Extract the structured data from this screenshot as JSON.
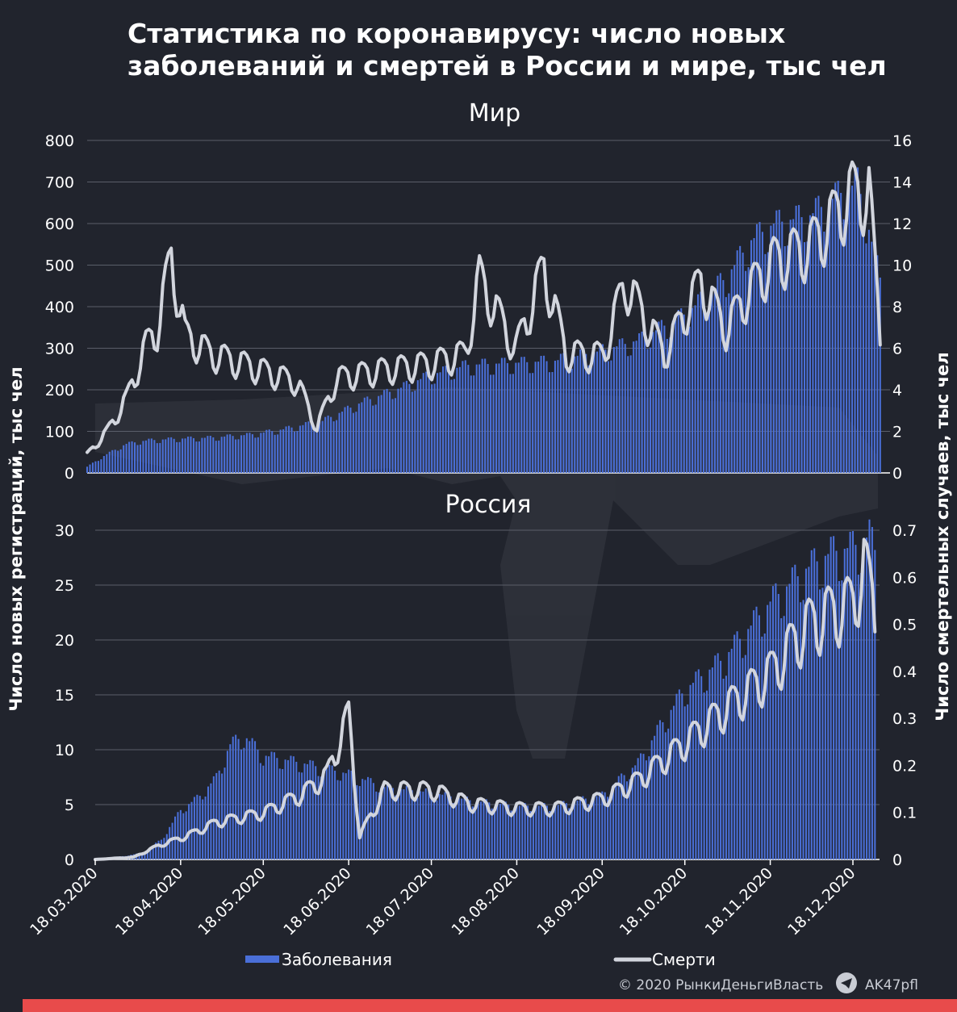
{
  "title": "Статистика по коронавирусу: число новых заболеваний и смертей в России и мире, тыс чел",
  "left_axis_label": "Число новых регистраций, тыс чел",
  "right_axis_label": "Число смертельных случаев, тыс чел",
  "legend": {
    "cases": "Заболевания",
    "deaths": "Смерти"
  },
  "credit": "© 2020  РынкиДеньгиВласть",
  "handle": "AK47pfl",
  "icons": {
    "watermark": "ak47-watermark-icon",
    "telegram": "telegram-icon"
  },
  "colors": {
    "background": "#21242d",
    "cases": "#4a6fd8",
    "deaths": "#d2d5dd",
    "grid": "#5a5e69",
    "bottom_bar": "#e84b4b"
  },
  "chart_data": [
    {
      "type": "bar+line",
      "title": "Мир",
      "x_range": [
        "2020-03-18",
        "2020-12-26"
      ],
      "x_ticks": [
        "18.03.2020",
        "18.04.2020",
        "18.05.2020",
        "18.06.2020",
        "18.07.2020",
        "18.08.2020",
        "18.09.2020",
        "18.10.2020",
        "18.11.2020",
        "18.12.2020"
      ],
      "ylim_left": [
        0,
        800
      ],
      "yticks_left": [
        0,
        100,
        200,
        300,
        400,
        500,
        600,
        700,
        800
      ],
      "ylim_right": [
        0,
        16
      ],
      "yticks_right": [
        0,
        2,
        4,
        6,
        8,
        10,
        12,
        14,
        16
      ],
      "grid": true,
      "series": [
        {
          "name": "Заболевания",
          "kind": "bar",
          "axis": "left",
          "points": [
            [
              "2020-03-18",
              15
            ],
            [
              "2020-03-25",
              45
            ],
            [
              "2020-04-01",
              70
            ],
            [
              "2020-04-08",
              78
            ],
            [
              "2020-04-18",
              82
            ],
            [
              "2020-05-01",
              85
            ],
            [
              "2020-05-15",
              92
            ],
            [
              "2020-05-27",
              105
            ],
            [
              "2020-06-10",
              125
            ],
            [
              "2020-06-24",
              170
            ],
            [
              "2020-07-08",
              205
            ],
            [
              "2020-07-18",
              235
            ],
            [
              "2020-08-01",
              260
            ],
            [
              "2020-08-18",
              265
            ],
            [
              "2020-09-01",
              270
            ],
            [
              "2020-09-18",
              295
            ],
            [
              "2020-10-01",
              320
            ],
            [
              "2020-10-18",
              385
            ],
            [
              "2020-11-01",
              470
            ],
            [
              "2020-11-10",
              560
            ],
            [
              "2020-11-18",
              600
            ],
            [
              "2020-12-01",
              620
            ],
            [
              "2020-12-10",
              665
            ],
            [
              "2020-12-18",
              700
            ],
            [
              "2020-12-26",
              470
            ]
          ]
        },
        {
          "name": "Смерти",
          "kind": "line",
          "axis": "right",
          "points": [
            [
              "2020-03-18",
              0.9
            ],
            [
              "2020-03-25",
              2.0
            ],
            [
              "2020-04-01",
              3.6
            ],
            [
              "2020-04-08",
              6.2
            ],
            [
              "2020-04-12",
              7.0
            ],
            [
              "2020-04-17",
              10.5
            ],
            [
              "2020-04-22",
              6.7
            ],
            [
              "2020-05-01",
              5.8
            ],
            [
              "2020-05-15",
              5.2
            ],
            [
              "2020-06-01",
              4.4
            ],
            [
              "2020-06-08",
              2.2
            ],
            [
              "2020-06-15",
              4.6
            ],
            [
              "2020-07-01",
              5.0
            ],
            [
              "2020-07-18",
              5.3
            ],
            [
              "2020-07-31",
              5.8
            ],
            [
              "2020-08-05",
              9.5
            ],
            [
              "2020-08-18",
              6.0
            ],
            [
              "2020-08-28",
              10.0
            ],
            [
              "2020-09-05",
              5.8
            ],
            [
              "2020-09-18",
              5.7
            ],
            [
              "2020-09-26",
              9.3
            ],
            [
              "2020-10-10",
              5.8
            ],
            [
              "2020-10-23",
              9.3
            ],
            [
              "2020-11-01",
              7.0
            ],
            [
              "2020-11-10",
              9.0
            ],
            [
              "2020-11-18",
              10.3
            ],
            [
              "2020-12-01",
              11.0
            ],
            [
              "2020-12-10",
              12.5
            ],
            [
              "2020-12-16",
              13.6
            ],
            [
              "2020-12-22",
              13.6
            ],
            [
              "2020-12-26",
              7.0
            ]
          ]
        }
      ]
    },
    {
      "type": "bar+line",
      "title": "Россия",
      "x_range": [
        "2020-03-18",
        "2020-12-26"
      ],
      "x_ticks": [
        "18.03.2020",
        "18.04.2020",
        "18.05.2020",
        "18.06.2020",
        "18.07.2020",
        "18.08.2020",
        "18.09.2020",
        "18.10.2020",
        "18.11.2020",
        "18.12.2020"
      ],
      "ylim_left": [
        0,
        30
      ],
      "yticks_left": [
        0,
        5,
        10,
        15,
        20,
        25,
        30
      ],
      "ylim_right": [
        0,
        0.7
      ],
      "yticks_right": [
        0,
        0.1,
        0.2,
        0.3,
        0.4,
        0.5,
        0.6,
        0.7
      ],
      "grid": true,
      "series": [
        {
          "name": "Заболевания",
          "kind": "bar",
          "axis": "left",
          "points": [
            [
              "2020-03-18",
              0.05
            ],
            [
              "2020-03-28",
              0.3
            ],
            [
              "2020-04-04",
              0.6
            ],
            [
              "2020-04-11",
              1.8
            ],
            [
              "2020-04-18",
              4.5
            ],
            [
              "2020-04-25",
              5.8
            ],
            [
              "2020-05-01",
              7.5
            ],
            [
              "2020-05-06",
              10.5
            ],
            [
              "2020-05-11",
              11.3
            ],
            [
              "2020-05-18",
              9.5
            ],
            [
              "2020-06-01",
              8.8
            ],
            [
              "2020-06-18",
              7.8
            ],
            [
              "2020-07-01",
              6.6
            ],
            [
              "2020-07-18",
              6.1
            ],
            [
              "2020-08-01",
              5.4
            ],
            [
              "2020-08-18",
              4.9
            ],
            [
              "2020-09-01",
              4.9
            ],
            [
              "2020-09-18",
              5.9
            ],
            [
              "2020-10-01",
              8.8
            ],
            [
              "2020-10-10",
              12.5
            ],
            [
              "2020-10-18",
              15.5
            ],
            [
              "2020-11-01",
              18.3
            ],
            [
              "2020-11-10",
              21.0
            ],
            [
              "2020-11-18",
              23.5
            ],
            [
              "2020-12-01",
              26.5
            ],
            [
              "2020-12-10",
              28.0
            ],
            [
              "2020-12-18",
              28.5
            ],
            [
              "2020-12-24",
              29.5
            ],
            [
              "2020-12-26",
              28.2
            ]
          ]
        },
        {
          "name": "Смерти",
          "kind": "line",
          "axis": "right",
          "points": [
            [
              "2020-03-18",
              0.0
            ],
            [
              "2020-04-01",
              0.005
            ],
            [
              "2020-04-10",
              0.03
            ],
            [
              "2020-04-20",
              0.05
            ],
            [
              "2020-05-01",
              0.08
            ],
            [
              "2020-05-18",
              0.1
            ],
            [
              "2020-06-01",
              0.14
            ],
            [
              "2020-06-10",
              0.18
            ],
            [
              "2020-06-18",
              0.31
            ],
            [
              "2020-06-22",
              0.05
            ],
            [
              "2020-07-01",
              0.15
            ],
            [
              "2020-07-18",
              0.15
            ],
            [
              "2020-08-01",
              0.12
            ],
            [
              "2020-08-18",
              0.11
            ],
            [
              "2020-09-01",
              0.11
            ],
            [
              "2020-09-18",
              0.13
            ],
            [
              "2020-10-01",
              0.17
            ],
            [
              "2020-10-18",
              0.25
            ],
            [
              "2020-11-01",
              0.32
            ],
            [
              "2020-11-18",
              0.4
            ],
            [
              "2020-12-01",
              0.5
            ],
            [
              "2020-12-10",
              0.53
            ],
            [
              "2020-12-18",
              0.55
            ],
            [
              "2020-12-22",
              0.63
            ],
            [
              "2020-12-26",
              0.55
            ]
          ]
        }
      ]
    }
  ]
}
